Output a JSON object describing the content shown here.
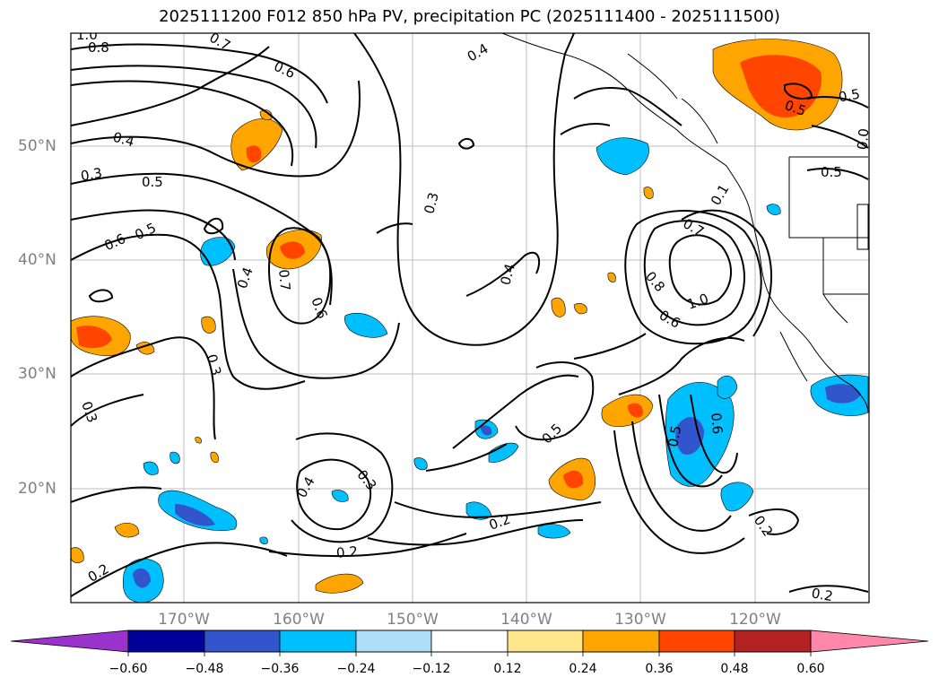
{
  "title": "2025111200 F012 850 hPa PV, precipitation PC (2025111400 - 2025111500)",
  "map": {
    "lat_labels": [
      "50°N",
      "40°N",
      "30°N",
      "20°N"
    ],
    "lon_labels": [
      "170°W",
      "160°W",
      "150°W",
      "140°W",
      "130°W",
      "120°W"
    ],
    "contour_labels": [
      "1.0",
      "0.8",
      "0.7",
      "0.6",
      "0.4",
      "0.3",
      "0.5",
      "0.6",
      "0.5",
      "0.4",
      "0.7",
      "0.6",
      "0.3",
      "0.4",
      "0.3",
      "0.3",
      "0.4",
      "0.3",
      "0.2",
      "0.2",
      "0.2",
      "0.4",
      "0.5",
      "0.5",
      "0.6",
      "0.2",
      "0.2",
      "0.7",
      "0.8",
      "1.0",
      "0.6",
      "0.5",
      "0.5",
      "0.5",
      "0.1",
      "0.0"
    ]
  },
  "colorbar": {
    "ticks": [
      "−0.60",
      "−0.48",
      "−0.36",
      "−0.24",
      "−0.12",
      "0.12",
      "0.24",
      "0.36",
      "0.48",
      "0.60"
    ],
    "colors": [
      "#9933CC",
      "#000099",
      "#3355CC",
      "#00BFFF",
      "#ADE0F8",
      "#FFFFFF",
      "#FFE68A",
      "#FFA500",
      "#FF4500",
      "#B22222",
      "#FF88AA"
    ]
  }
}
